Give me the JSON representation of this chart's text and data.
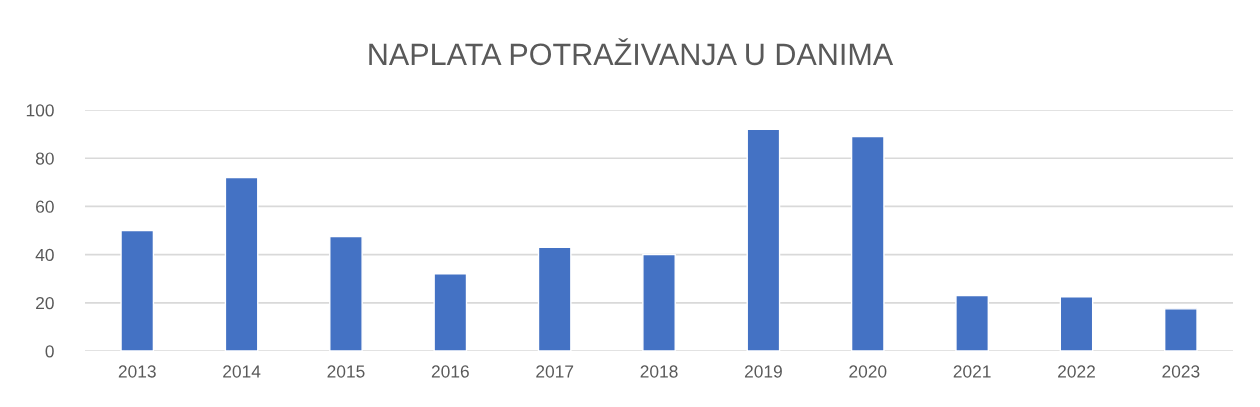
{
  "chart_data": {
    "type": "bar",
    "title": "NAPLATA POTRAŽIVANJA U DANIMA",
    "categories": [
      "2013",
      "2014",
      "2015",
      "2016",
      "2017",
      "2018",
      "2019",
      "2020",
      "2021",
      "2022",
      "2023"
    ],
    "values": [
      50,
      72,
      47.5,
      32,
      43,
      40,
      92,
      89,
      23,
      22.5,
      17.5
    ],
    "color": "#4472c4",
    "ylim": [
      0,
      100
    ],
    "yticks": [
      0,
      20,
      40,
      60,
      80,
      100
    ],
    "grid": "y"
  }
}
